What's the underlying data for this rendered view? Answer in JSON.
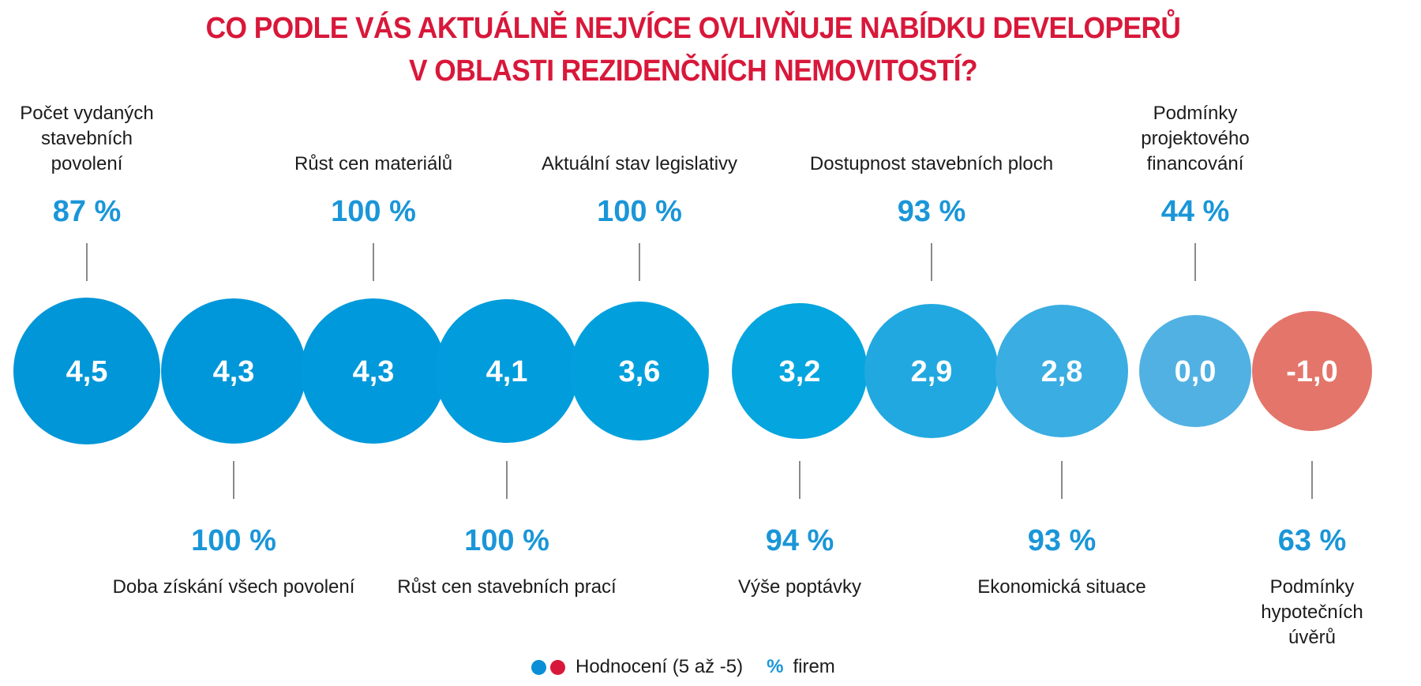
{
  "title": {
    "line1": "CO PODLE VÁS AKTUÁLNĚ NEJVÍCE OVLIVŇUJE NABÍDKU DEVELOPERŮ",
    "line2": "V OBLASTI REZIDENČNÍCH NEMOVITOSTÍ?"
  },
  "colors": {
    "title": "#d8183a",
    "percent": "#1a96d8",
    "legend_blue": "#0a8fd6",
    "legend_red": "#d8183a",
    "connector": "#8a8a8a"
  },
  "legend": {
    "rating_label": "Hodnocení (5 až -5)",
    "percent_symbol": "%",
    "percent_label": "firem"
  },
  "chart_data": {
    "type": "bubble",
    "title": "CO PODLE VÁS AKTUÁLNĚ NEJVÍCE OVLIVŇUJE NABÍDKU DEVELOPERŮ V OBLASTI REZIDENČNÍCH NEMOVITOSTÍ?",
    "rating_scale": [
      5,
      -5
    ],
    "legend": [
      "Hodnocení (5 až -5)",
      "% firem"
    ],
    "items": [
      {
        "label": [
          "Počet vydaných",
          "stavebních",
          "povolení"
        ],
        "rating": 4.5,
        "rating_text": "4,5",
        "percent": 87,
        "percent_text": "87 %",
        "label_side": "top",
        "color": "#0096d8"
      },
      {
        "label": [
          "Doba získání všech povolení"
        ],
        "rating": 4.3,
        "rating_text": "4,3",
        "percent": 100,
        "percent_text": "100 %",
        "label_side": "bottom",
        "color": "#0097da"
      },
      {
        "label": [
          "Růst cen materiálů"
        ],
        "rating": 4.3,
        "rating_text": "4,3",
        "percent": 100,
        "percent_text": "100 %",
        "label_side": "top",
        "color": "#0099db"
      },
      {
        "label": [
          "Růst cen stavebních prací"
        ],
        "rating": 4.1,
        "rating_text": "4,1",
        "percent": 100,
        "percent_text": "100 %",
        "label_side": "bottom",
        "color": "#009cdc"
      },
      {
        "label": [
          "Aktuální stav legislativy"
        ],
        "rating": 3.6,
        "rating_text": "3,6",
        "percent": 100,
        "percent_text": "100 %",
        "label_side": "top",
        "color": "#01a0dd"
      },
      {
        "label": [
          "Výše poptávky"
        ],
        "rating": 3.2,
        "rating_text": "3,2",
        "percent": 94,
        "percent_text": "94 %",
        "label_side": "bottom",
        "color": "#05a5df"
      },
      {
        "label": [
          "Dostupnost stavebních ploch"
        ],
        "rating": 2.9,
        "rating_text": "2,9",
        "percent": 93,
        "percent_text": "93 %",
        "label_side": "top",
        "color": "#22a8e0"
      },
      {
        "label": [
          "Ekonomická situace"
        ],
        "rating": 2.8,
        "rating_text": "2,8",
        "percent": 93,
        "percent_text": "93 %",
        "label_side": "bottom",
        "color": "#3aade2"
      },
      {
        "label": [
          "Podmínky",
          "projektového",
          "financování"
        ],
        "rating": 0.0,
        "rating_text": "0,0",
        "percent": 44,
        "percent_text": "44 %",
        "label_side": "top",
        "color": "#52b1e3"
      },
      {
        "label": [
          "Podmínky",
          "hypotečních",
          "úvěrů"
        ],
        "rating": -1.0,
        "rating_text": "-1,0",
        "percent": 63,
        "percent_text": "63 %",
        "label_side": "bottom",
        "color": "#e4756a"
      }
    ]
  }
}
